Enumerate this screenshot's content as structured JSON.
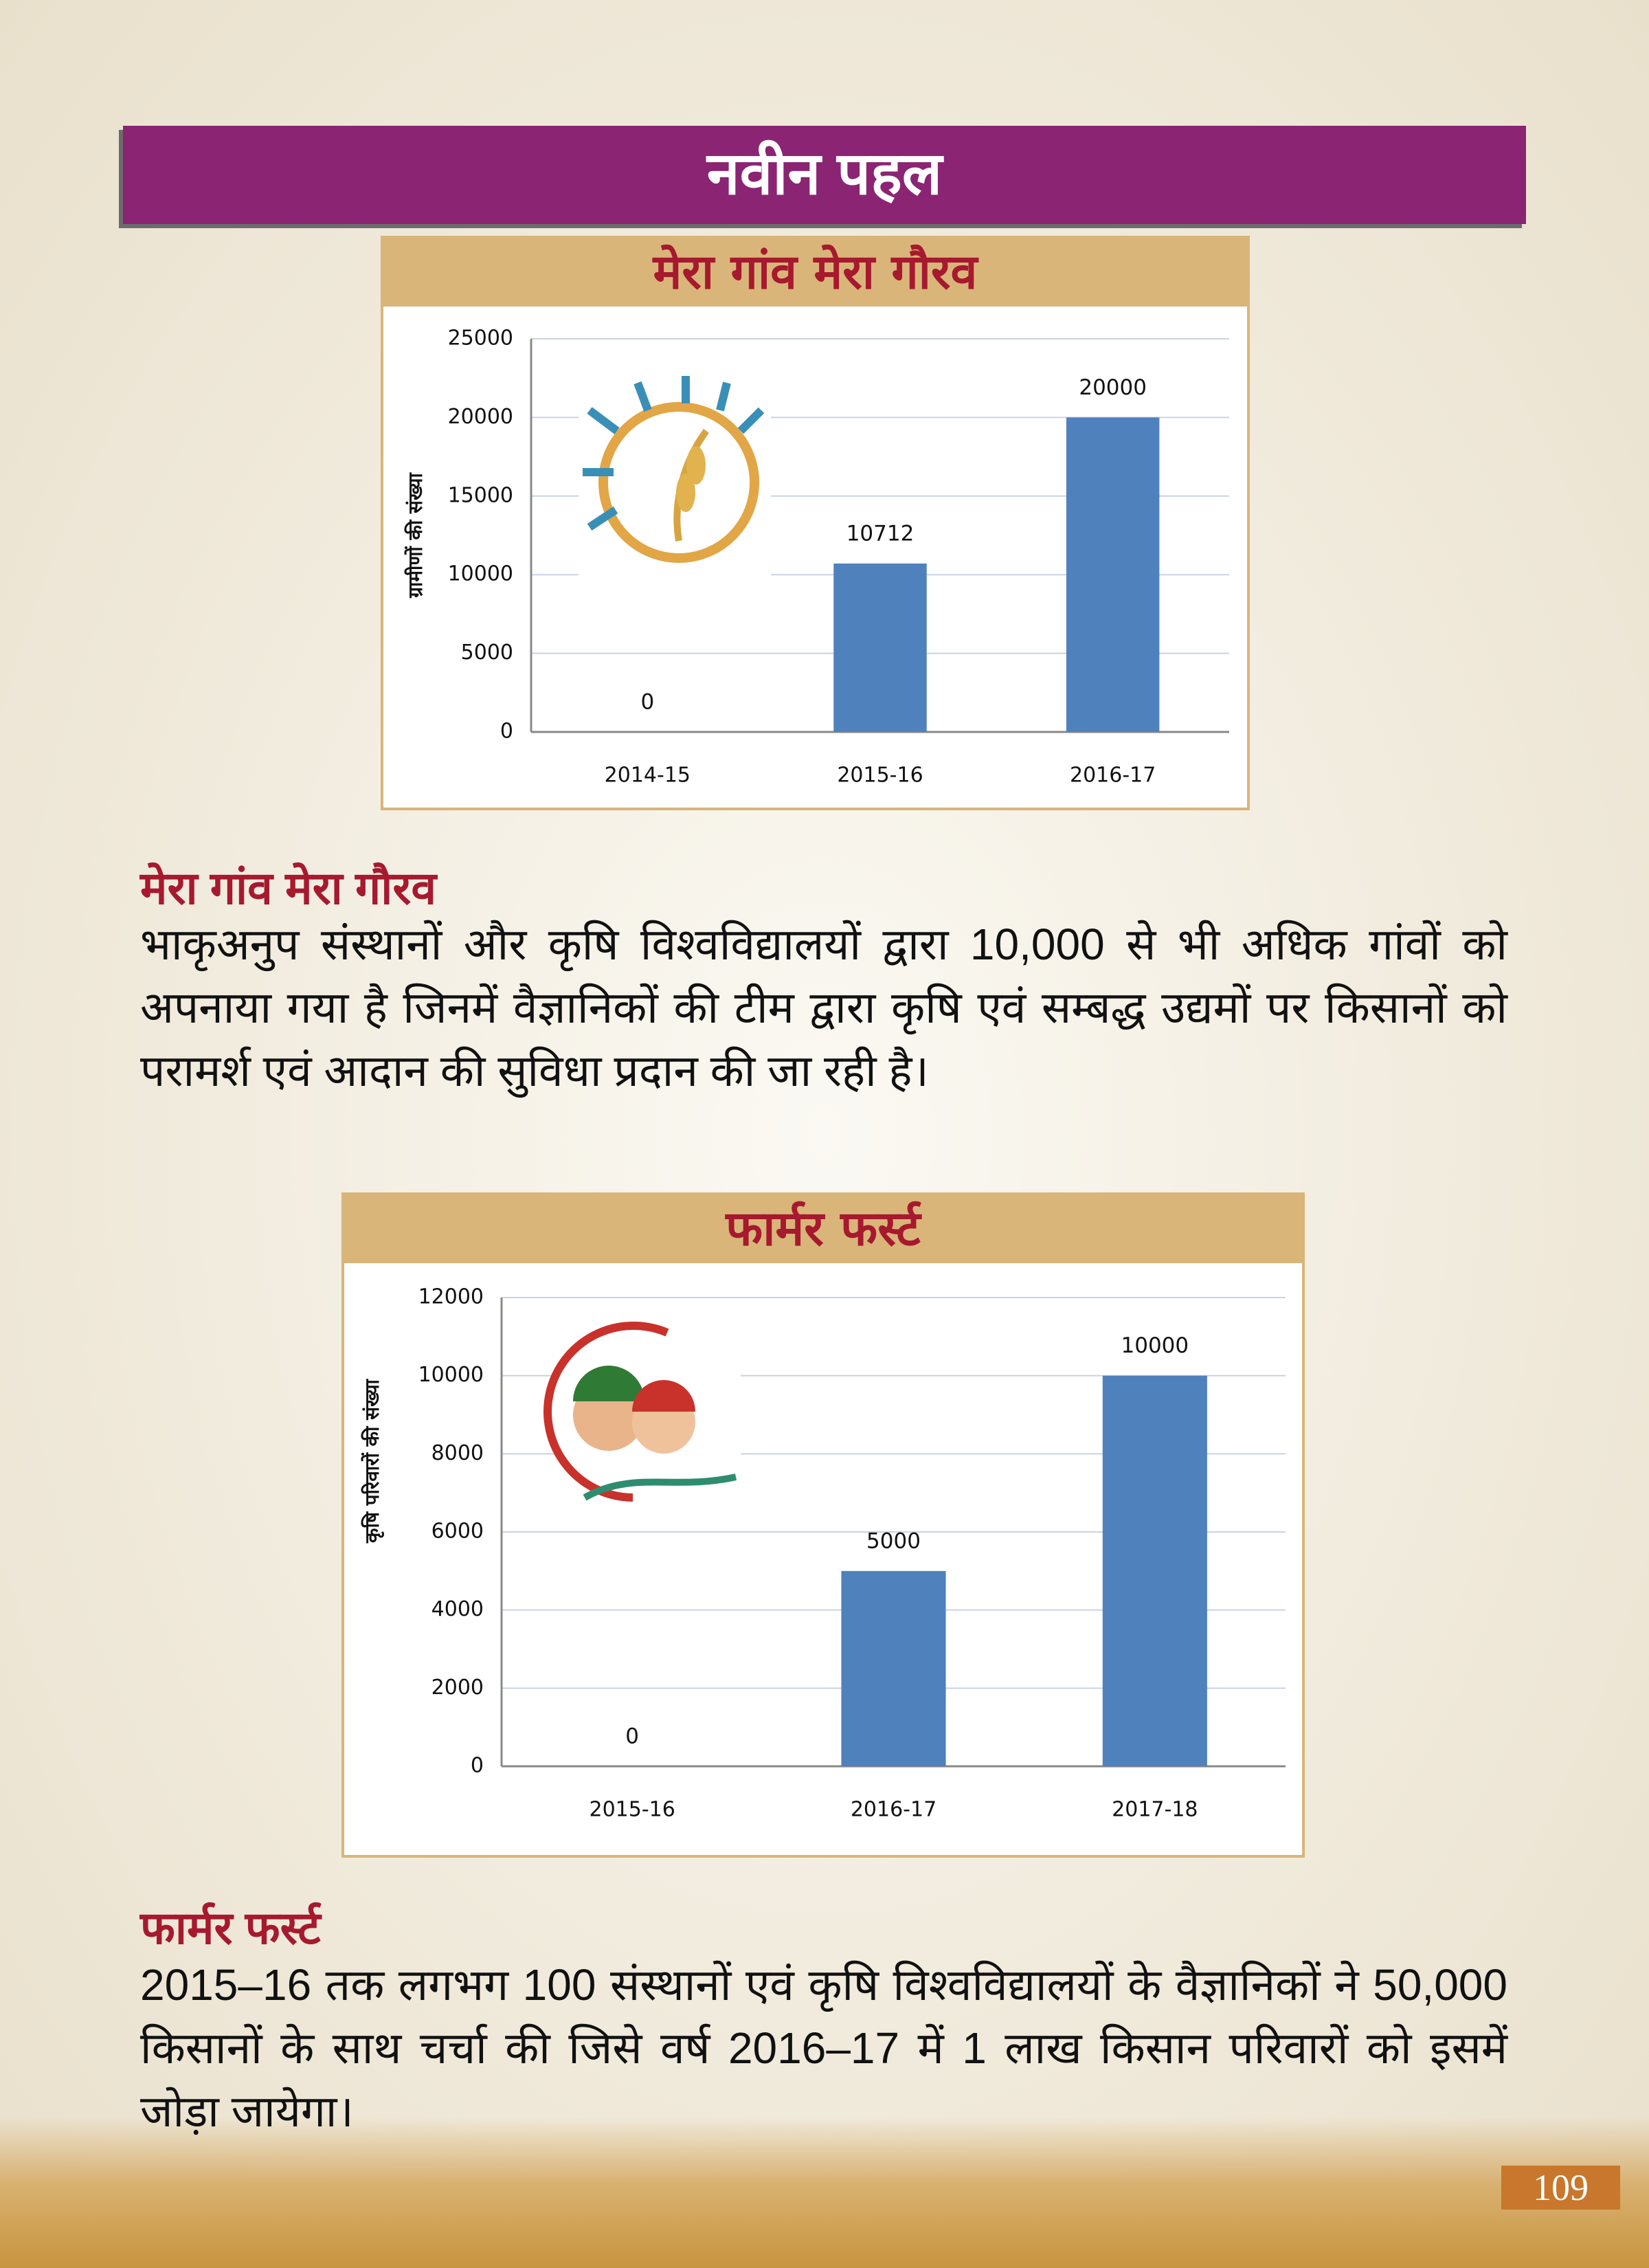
{
  "header": {
    "title": "नवीन पहल"
  },
  "chart_data": [
    {
      "type": "bar",
      "title": "मेरा गांव मेरा गौरव",
      "y_label": "ग्रामीणों की संख्या",
      "categories": [
        "2014-15",
        "2015-16",
        "2016-17"
      ],
      "values": [
        0,
        10712,
        20000
      ],
      "color": "#4f81bd",
      "ylim": [
        0,
        25000
      ],
      "yticks": [
        0,
        5000,
        10000,
        15000,
        20000,
        25000
      ],
      "grid": true
    },
    {
      "type": "bar",
      "title": "फार्मर फर्स्ट",
      "y_label": "कृषि परिवारों की संख्या",
      "categories": [
        "2015-16",
        "2016-17",
        "2017-18"
      ],
      "values": [
        0,
        5000,
        10000
      ],
      "color": "#4f81bd",
      "ylim": [
        0,
        12000
      ],
      "yticks": [
        0,
        2000,
        4000,
        6000,
        8000,
        10000,
        12000
      ],
      "grid": true
    }
  ],
  "sections": [
    {
      "heading": "मेरा गांव मेरा गौरव",
      "text": "भाकृअनुप संस्थानों और कृषि विश्वविद्यालयों द्वारा 10,000 से भी अधिक गांवों को अपनाया गया है जिनमें वैज्ञानिकों की टीम द्वारा कृषि एवं सम्बद्ध उद्यमों पर किसानों को परामर्श एवं आदान की सुविधा प्रदान की जा रही है।"
    },
    {
      "heading": "फार्मर फर्स्ट",
      "text": "2015–16 तक लगभग 100 संस्थानों एवं कृषि विश्वविद्यालयों के वैज्ञानिकों ने 50,000 किसानों के साथ चर्चा की जिसे वर्ष 2016–17 में 1 लाख किसान परिवारों को इसमें जोड़ा जायेगा।"
    }
  ],
  "page_number": "109"
}
